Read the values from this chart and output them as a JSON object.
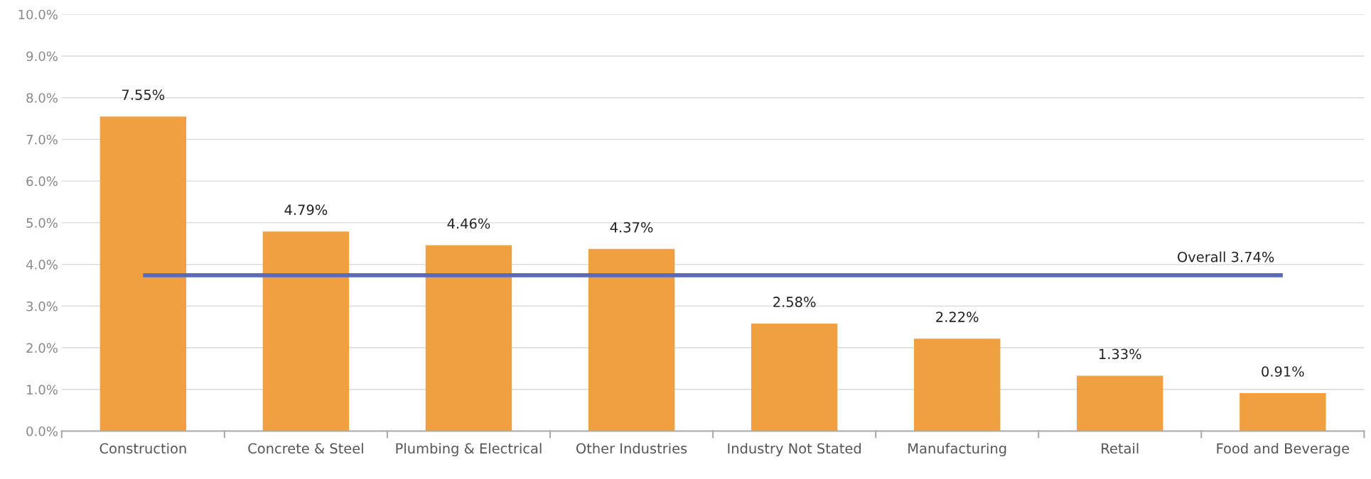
{
  "chart_data": {
    "type": "bar",
    "categories": [
      "Construction",
      "Concrete & Steel",
      "Plumbing & Electrical",
      "Other Industries",
      "Industry Not Stated",
      "Manufacturing",
      "Retail",
      "Food and Beverage"
    ],
    "values": [
      7.55,
      4.79,
      4.46,
      4.37,
      2.58,
      2.22,
      1.33,
      0.91
    ],
    "value_labels": [
      "7.55%",
      "4.79%",
      "4.46%",
      "4.37%",
      "2.58%",
      "2.22%",
      "1.33%",
      "0.91%"
    ],
    "color": "#f0a040",
    "ylim": [
      0,
      10
    ],
    "yticks": [
      {
        "value": 0,
        "label": "0.0%"
      },
      {
        "value": 1,
        "label": "1.0%"
      },
      {
        "value": 2,
        "label": "2.0%"
      },
      {
        "value": 3,
        "label": "3.0%"
      },
      {
        "value": 4,
        "label": "4.0%"
      },
      {
        "value": 5,
        "label": "5.0%"
      },
      {
        "value": 6,
        "label": "6.0%"
      },
      {
        "value": 7,
        "label": "7.0%"
      },
      {
        "value": 8,
        "label": "8.0%"
      },
      {
        "value": 9,
        "label": "9.0%"
      },
      {
        "value": 10,
        "label": "10.0%"
      }
    ],
    "grid": "y",
    "ref_lines": [
      {
        "axis": "y",
        "value": 3.74,
        "label": "Overall 3.74%",
        "color": "#5a6ab8"
      }
    ]
  }
}
